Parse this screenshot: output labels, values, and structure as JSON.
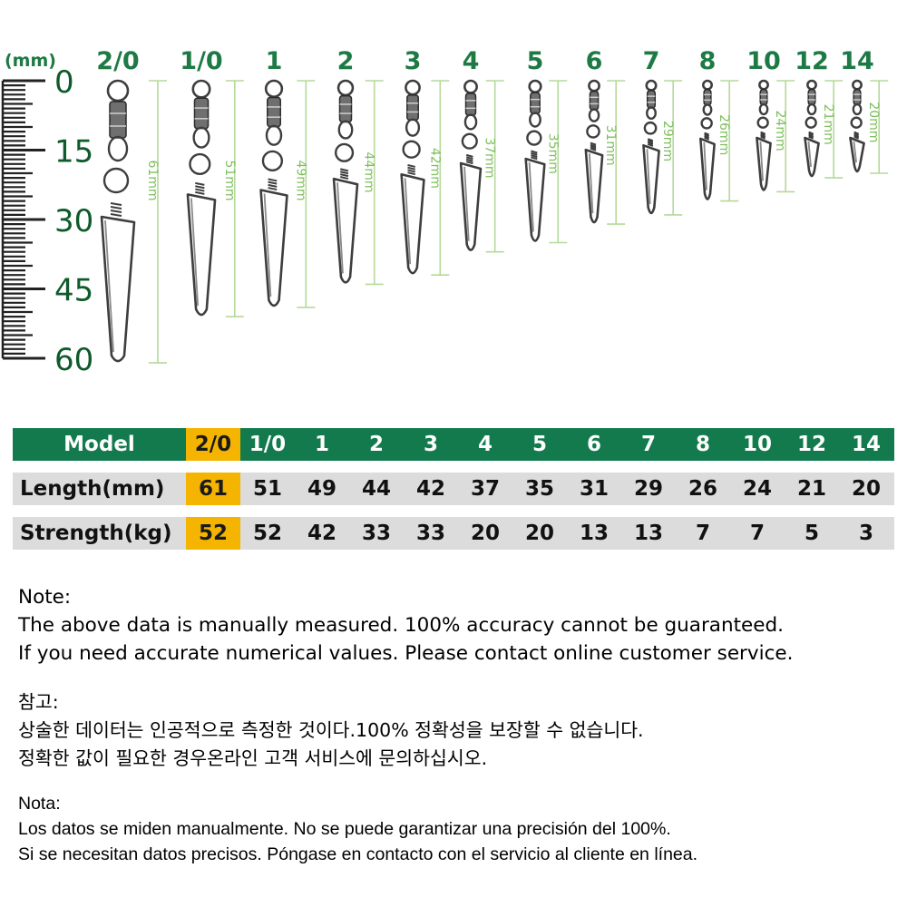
{
  "figure": {
    "unit_label": "(mm)",
    "ruler_labels": [
      "0",
      "15",
      "30",
      "45",
      "60"
    ],
    "models": [
      {
        "size": "2/0",
        "measure": "61mm",
        "length_mm": 61
      },
      {
        "size": "1/0",
        "measure": "51mm",
        "length_mm": 51
      },
      {
        "size": "1",
        "measure": "49mm",
        "length_mm": 49
      },
      {
        "size": "2",
        "measure": "44mm",
        "length_mm": 44
      },
      {
        "size": "3",
        "measure": "42mm",
        "length_mm": 42
      },
      {
        "size": "4",
        "measure": "37mm",
        "length_mm": 37
      },
      {
        "size": "5",
        "measure": "35mm",
        "length_mm": 35
      },
      {
        "size": "6",
        "measure": "31mm",
        "length_mm": 31
      },
      {
        "size": "7",
        "measure": "29mm",
        "length_mm": 29
      },
      {
        "size": "8",
        "measure": "26mm",
        "length_mm": 26
      },
      {
        "size": "10",
        "measure": "24mm",
        "length_mm": 24
      },
      {
        "size": "12",
        "measure": "21mm",
        "length_mm": 21
      },
      {
        "size": "14",
        "measure": "20mm",
        "length_mm": 20
      }
    ],
    "colors": {
      "label_green": "#1d7a44",
      "dimension_line": "#b5d99a",
      "ruler": "#222222",
      "highlight": "#f5b400"
    }
  },
  "table": {
    "header": {
      "label": "Model",
      "values": [
        "2/0",
        "1/0",
        "1",
        "2",
        "3",
        "4",
        "5",
        "6",
        "7",
        "8",
        "10",
        "12",
        "14"
      ]
    },
    "length": {
      "label": "Length(mm)",
      "values": [
        "61",
        "51",
        "49",
        "44",
        "42",
        "37",
        "35",
        "31",
        "29",
        "26",
        "24",
        "21",
        "20"
      ]
    },
    "strength": {
      "label": "Strength(kg)",
      "values": [
        "52",
        "52",
        "42",
        "33",
        "33",
        "20",
        "20",
        "13",
        "13",
        "7",
        "7",
        "5",
        "3"
      ]
    }
  },
  "notes": {
    "en": {
      "title": "Note:",
      "line1": "The above data is manually measured. 100% accuracy cannot be guaranteed.",
      "line2": "If you need accurate numerical values. Please contact online customer service."
    },
    "ko": {
      "title": "참고:",
      "line1": "상술한 데이터는 인공적으로 측정한 것이다.100% 정확성을 보장할 수 없습니다.",
      "line2": "정확한 값이 필요한 경우온라인 고객 서비스에 문의하십시오."
    },
    "es": {
      "title": "Nota:",
      "line1": "Los datos se miden manualmente. No se puede garantizar una precisión del 100%.",
      "line2": "Si se necesitan datos precisos. Póngase en contacto con el servicio al cliente en línea."
    }
  }
}
